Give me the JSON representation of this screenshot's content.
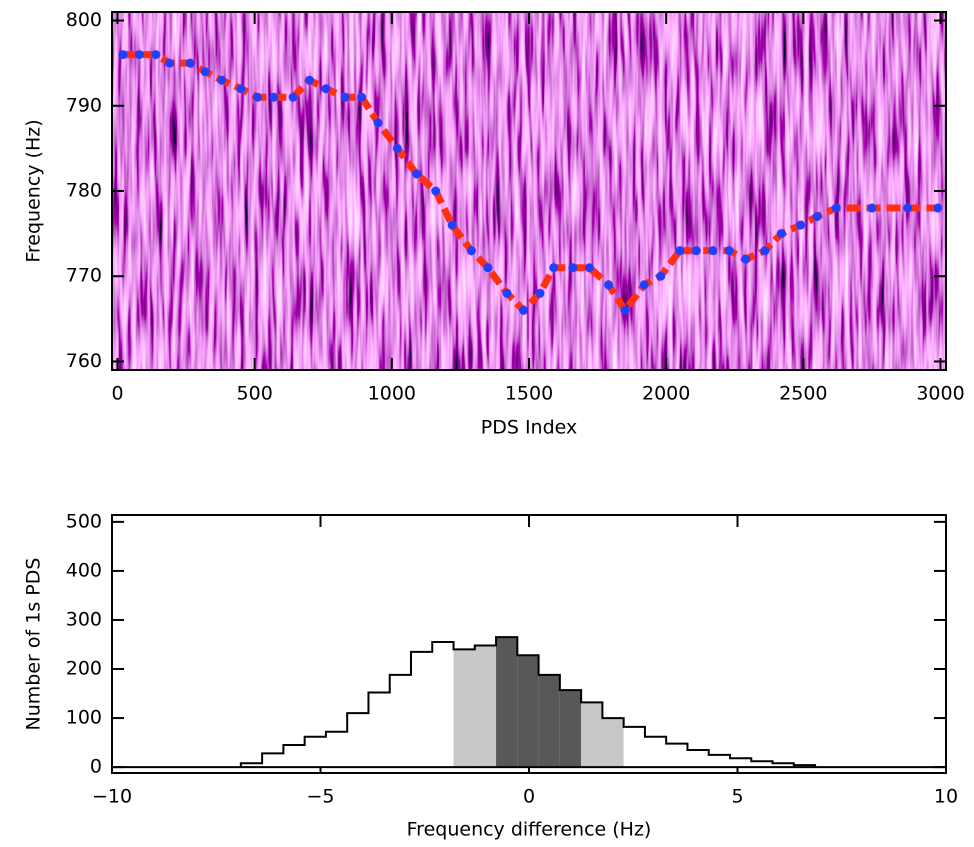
{
  "chart_data": [
    {
      "type": "line",
      "ylabel": "Frequency (Hz)",
      "xlabel": "PDS Index",
      "x": [
        20,
        80,
        140,
        190,
        265,
        320,
        380,
        450,
        510,
        570,
        640,
        700,
        760,
        830,
        890,
        950,
        1020,
        1090,
        1160,
        1220,
        1290,
        1350,
        1420,
        1480,
        1540,
        1590,
        1660,
        1720,
        1790,
        1850,
        1920,
        1980,
        2050,
        2110,
        2170,
        2230,
        2290,
        2360,
        2420,
        2490,
        2550,
        2620,
        2750,
        2880,
        2990
      ],
      "series": [
        {
          "color": "#ff3010",
          "values": [
            796,
            796,
            796,
            795,
            795,
            794,
            793,
            792,
            791,
            791,
            791,
            793,
            792,
            791,
            791,
            788,
            785,
            782,
            780,
            776,
            773,
            771,
            768,
            766,
            768,
            771,
            771,
            771,
            769,
            766,
            769,
            770,
            773,
            773,
            773,
            773,
            772,
            773,
            775,
            776,
            777,
            778,
            778,
            778,
            778
          ]
        },
        {
          "color": "#2040ff",
          "values": [
            796,
            796,
            796,
            795,
            795,
            794,
            793,
            792,
            791,
            791,
            791,
            793,
            792,
            791,
            791,
            788,
            785,
            782,
            780,
            776,
            773,
            771,
            768,
            766,
            768,
            771,
            771,
            771,
            769,
            766,
            769,
            770,
            773,
            773,
            773,
            773,
            772,
            773,
            775,
            776,
            777,
            778,
            778,
            778,
            778
          ]
        }
      ],
      "xlim": [
        -20,
        3020
      ],
      "xticks": [
        0,
        500,
        1000,
        1500,
        2000,
        2500,
        3000
      ],
      "ylim": [
        759,
        801
      ],
      "yticks": [
        760,
        770,
        780,
        790,
        800
      ]
    },
    {
      "type": "histogram",
      "ylabel": "Number of 1s PDS",
      "xlabel": "Frequency difference (Hz)",
      "bins": [
        -6.91,
        -6.4,
        -5.89,
        -5.38,
        -4.87,
        -4.36,
        -3.85,
        -3.34,
        -2.83,
        -2.32,
        -1.81,
        -1.3,
        -0.79,
        -0.28,
        0.23,
        0.74,
        1.25,
        1.76,
        2.27,
        2.78,
        3.29,
        3.8,
        4.31,
        4.82,
        5.33,
        5.84,
        6.35,
        6.86
      ],
      "counts": [
        8,
        28,
        45,
        62,
        72,
        110,
        152,
        188,
        235,
        255,
        240,
        248,
        265,
        228,
        188,
        157,
        132,
        100,
        82,
        62,
        48,
        35,
        25,
        18,
        12,
        8,
        4
      ],
      "colors": [
        "#ffffff",
        "#ffffff",
        "#ffffff",
        "#ffffff",
        "#ffffff",
        "#ffffff",
        "#ffffff",
        "#ffffff",
        "#ffffff",
        "#ffffff",
        "#c8c8c8",
        "#c8c8c8",
        "#585858",
        "#585858",
        "#585858",
        "#585858",
        "#c8c8c8",
        "#c8c8c8",
        "#ffffff",
        "#ffffff",
        "#ffffff",
        "#ffffff",
        "#ffffff",
        "#ffffff",
        "#ffffff",
        "#ffffff",
        "#ffffff"
      ],
      "xlim": [
        -10,
        10
      ],
      "xticks": [
        {
          "value": -10,
          "label": "−10"
        },
        {
          "value": -5,
          "label": "−5"
        },
        0,
        5,
        10
      ],
      "ylim": [
        -12,
        514
      ],
      "yticks": [
        0,
        100,
        200,
        300,
        400,
        500
      ]
    }
  ]
}
